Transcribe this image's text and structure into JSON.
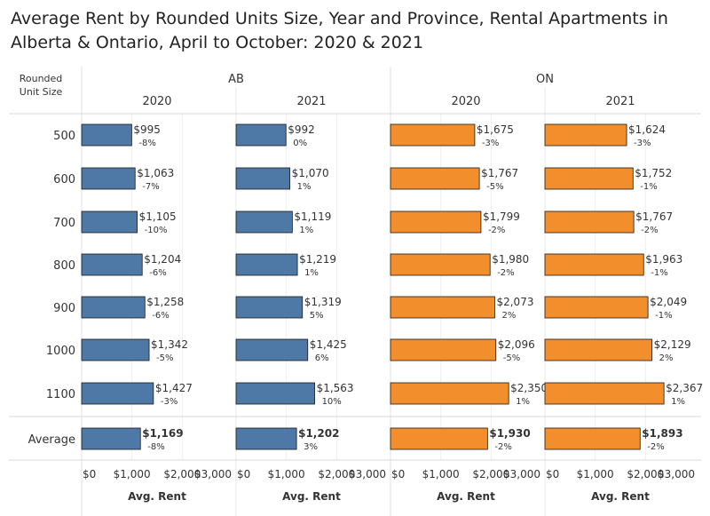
{
  "chart_data": {
    "type": "bar",
    "orientation": "horizontal",
    "title": "Average Rent by Rounded Units Size, Year and Province, Rental Apartments in Alberta & Ontario, April to October: 2020 & 2021",
    "row_header": "Rounded Unit Size",
    "categories": [
      "500",
      "600",
      "700",
      "800",
      "900",
      "1000",
      "1100",
      "Average"
    ],
    "provinces": [
      "AB",
      "ON"
    ],
    "axis_label": "Avg. Rent",
    "xlim": [
      0,
      3000
    ],
    "tick_values": [
      0,
      1000,
      2000,
      3000
    ],
    "tick_labels": [
      "$0",
      "$1,000",
      "$2,000",
      "$3,000"
    ],
    "colors": {
      "AB": "#4e79a7",
      "ON": "#f28e2b"
    },
    "series": [
      {
        "province": "AB",
        "year": "2020",
        "values": [
          995,
          1063,
          1105,
          1204,
          1258,
          1342,
          1427,
          1169
        ],
        "value_labels": [
          "$995",
          "$1,063",
          "$1,105",
          "$1,204",
          "$1,258",
          "$1,342",
          "$1,427",
          "$1,169"
        ],
        "change_labels": [
          "-8%",
          "-7%",
          "-10%",
          "-6%",
          "-6%",
          "-5%",
          "-3%",
          "-8%"
        ]
      },
      {
        "province": "AB",
        "year": "2021",
        "values": [
          992,
          1070,
          1119,
          1219,
          1319,
          1425,
          1563,
          1202
        ],
        "value_labels": [
          "$992",
          "$1,070",
          "$1,119",
          "$1,219",
          "$1,319",
          "$1,425",
          "$1,563",
          "$1,202"
        ],
        "change_labels": [
          "0%",
          "1%",
          "1%",
          "1%",
          "5%",
          "6%",
          "10%",
          "3%"
        ]
      },
      {
        "province": "ON",
        "year": "2020",
        "values": [
          1675,
          1767,
          1799,
          1980,
          2073,
          2096,
          2350,
          1930
        ],
        "value_labels": [
          "$1,675",
          "$1,767",
          "$1,799",
          "$1,980",
          "$2,073",
          "$2,096",
          "$2,350",
          "$1,930"
        ],
        "change_labels": [
          "-3%",
          "-5%",
          "-2%",
          "-2%",
          "2%",
          "-5%",
          "1%",
          "-2%"
        ]
      },
      {
        "province": "ON",
        "year": "2021",
        "values": [
          1624,
          1752,
          1767,
          1963,
          2049,
          2129,
          2367,
          1893
        ],
        "value_labels": [
          "$1,624",
          "$1,752",
          "$1,767",
          "$1,963",
          "$2,049",
          "$2,129",
          "$2,367",
          "$1,893"
        ],
        "change_labels": [
          "-3%",
          "-1%",
          "-2%",
          "-1%",
          "-1%",
          "2%",
          "1%",
          "-2%"
        ]
      }
    ]
  }
}
